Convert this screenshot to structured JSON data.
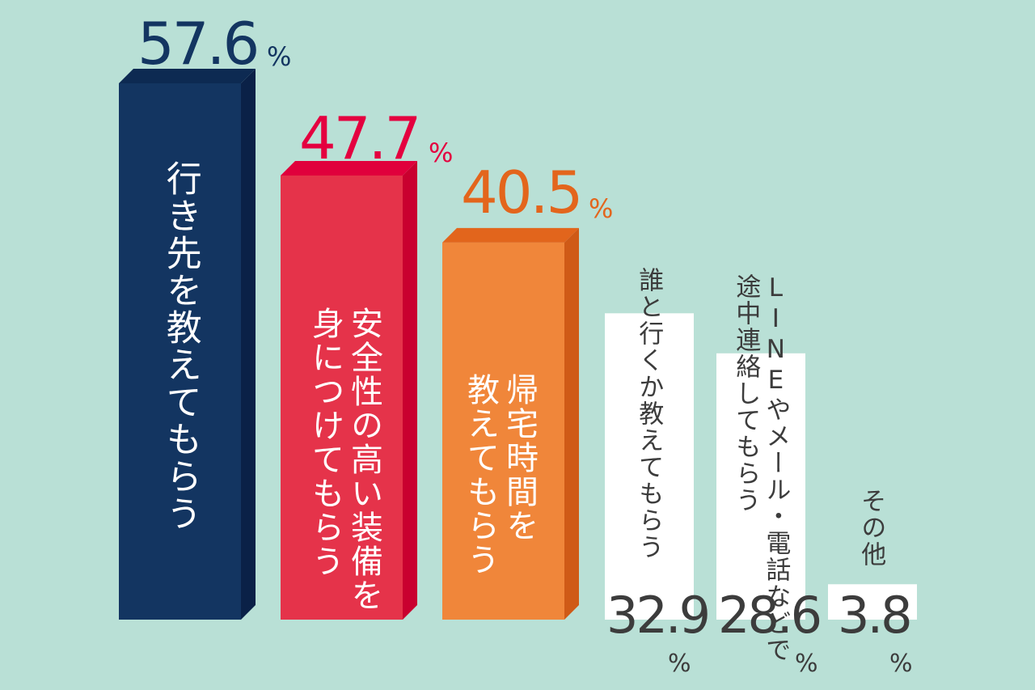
{
  "chart_data": {
    "type": "bar",
    "unit": "%",
    "categories": [
      "行き先を教えてもらう",
      "安全性の高い装備を身につけてもらう",
      "帰宅時間を教えてもらう",
      "誰と行くか教えてもらう",
      "LINEやメール・電話などで途中連絡してもらう",
      "その他"
    ],
    "values": [
      57.6,
      47.7,
      40.5,
      32.9,
      28.6,
      3.8
    ],
    "value_labels": [
      "57.6",
      "47.7",
      "40.5",
      "32.9",
      "28.6",
      "3.8"
    ],
    "colors": [
      "#133561",
      "#e5334a",
      "#f0863a",
      "#ffffff",
      "#ffffff",
      "#ffffff"
    ],
    "background": "#b9e0d6",
    "ylim": [
      0,
      60
    ],
    "grid": false,
    "legend": "none"
  },
  "bars": [
    {
      "label_lines": [
        "行き先を教えてもらう"
      ],
      "value": "57.6",
      "percent": "%"
    },
    {
      "label_lines": [
        "安全性の高い装備を",
        "身につけてもらう"
      ],
      "value": "47.7",
      "percent": "%"
    },
    {
      "label_lines": [
        "帰宅時間を",
        "教えてもらう"
      ],
      "value": "40.5",
      "percent": "%"
    },
    {
      "label_lines": [
        "誰と行くか教えてもらう"
      ],
      "value": "32.9",
      "percent": "%"
    },
    {
      "label_lines": [
        "LINEやメール・電話などで",
        "途中連絡してもらう"
      ],
      "value": "28.6",
      "percent": "%"
    },
    {
      "label_lines": [
        "その他"
      ],
      "value": "3.8",
      "percent": "%"
    }
  ]
}
